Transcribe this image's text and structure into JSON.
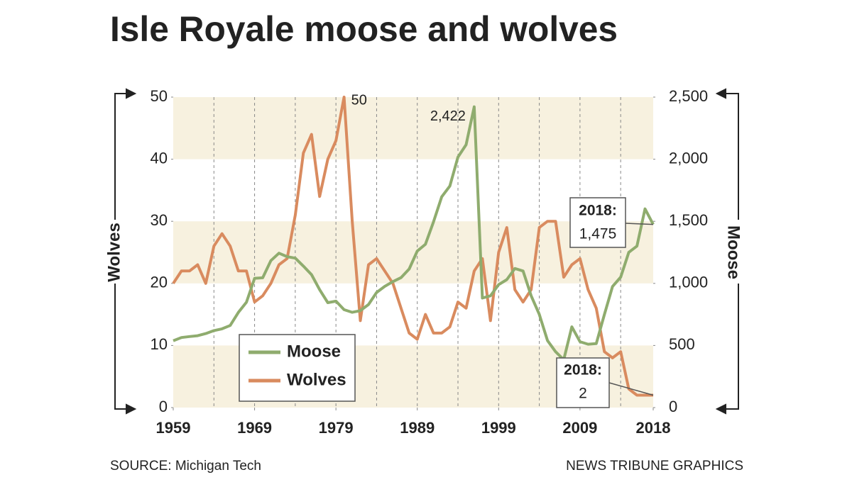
{
  "chart_data": {
    "type": "line",
    "title": "Isle Royale moose and wolves",
    "source": "SOURCE: Michigan Tech",
    "credit": "NEWS TRIBUNE GRAPHICS",
    "ylabel": "Wolves",
    "y2label": "Moose",
    "x": [
      1959,
      1960,
      1961,
      1962,
      1963,
      1964,
      1965,
      1966,
      1967,
      1968,
      1969,
      1970,
      1971,
      1972,
      1973,
      1974,
      1975,
      1976,
      1977,
      1978,
      1979,
      1980,
      1981,
      1982,
      1983,
      1984,
      1985,
      1986,
      1987,
      1988,
      1989,
      1990,
      1991,
      1992,
      1993,
      1994,
      1995,
      1996,
      1997,
      1998,
      1999,
      2000,
      2001,
      2002,
      2003,
      2004,
      2005,
      2006,
      2007,
      2008,
      2009,
      2010,
      2011,
      2012,
      2013,
      2014,
      2015,
      2016,
      2017,
      2018
    ],
    "xlim": [
      1959,
      2018
    ],
    "xticks": [
      1959,
      1969,
      1979,
      1989,
      1999,
      2009,
      2018
    ],
    "ylim": [
      0,
      50
    ],
    "yticks": [
      0,
      10,
      20,
      30,
      40,
      50
    ],
    "y2lim": [
      0,
      2500
    ],
    "y2ticks": [
      0,
      500,
      {
        "value": 1000,
        "label": "1,000"
      },
      {
        "value": 1500,
        "label": "1,500"
      },
      {
        "value": 2000,
        "label": "2,000"
      },
      {
        "value": 2500,
        "label": "2,500"
      }
    ],
    "series": [
      {
        "name": "Moose",
        "color": "#8fac6e",
        "axis": "y2",
        "values": [
          538,
          564,
          572,
          579,
          596,
          620,
          634,
          661,
          766,
          848,
          1041,
          1045,
          1183,
          1243,
          1215,
          1203,
          1139,
          1070,
          949,
          845,
          857,
          788,
          767,
          780,
          830,
          927,
          976,
          1014,
          1046,
          1116,
          1260,
          1315,
          1496,
          1697,
          1784,
          2017,
          2117,
          2422,
          882,
          900,
          990,
          1030,
          1120,
          1100,
          900,
          750,
          540,
          450,
          385,
          650,
          530,
          510,
          515,
          750,
          975,
          1050,
          1250,
          1300,
          1600,
          1475
        ]
      },
      {
        "name": "Wolves",
        "color": "#d98b5f",
        "values": [
          20,
          22,
          22,
          23,
          20,
          26,
          28,
          26,
          22,
          22,
          17,
          18,
          20,
          23,
          24,
          31,
          41,
          44,
          34,
          40,
          43,
          50,
          30,
          14,
          23,
          24,
          22,
          20,
          16,
          12,
          11,
          15,
          12,
          12,
          13,
          17,
          16,
          22,
          24,
          14,
          25,
          29,
          19,
          17,
          19,
          29,
          30,
          30,
          21,
          23,
          24,
          19,
          16,
          9,
          8,
          9,
          3,
          2,
          2,
          2
        ]
      }
    ],
    "annotations": {
      "wolves_peak": "50",
      "moose_peak": "2,422",
      "moose_end": [
        "2018:",
        "1,475"
      ],
      "wolves_end": [
        "2018:",
        "2"
      ]
    },
    "legend": "lower-left"
  }
}
